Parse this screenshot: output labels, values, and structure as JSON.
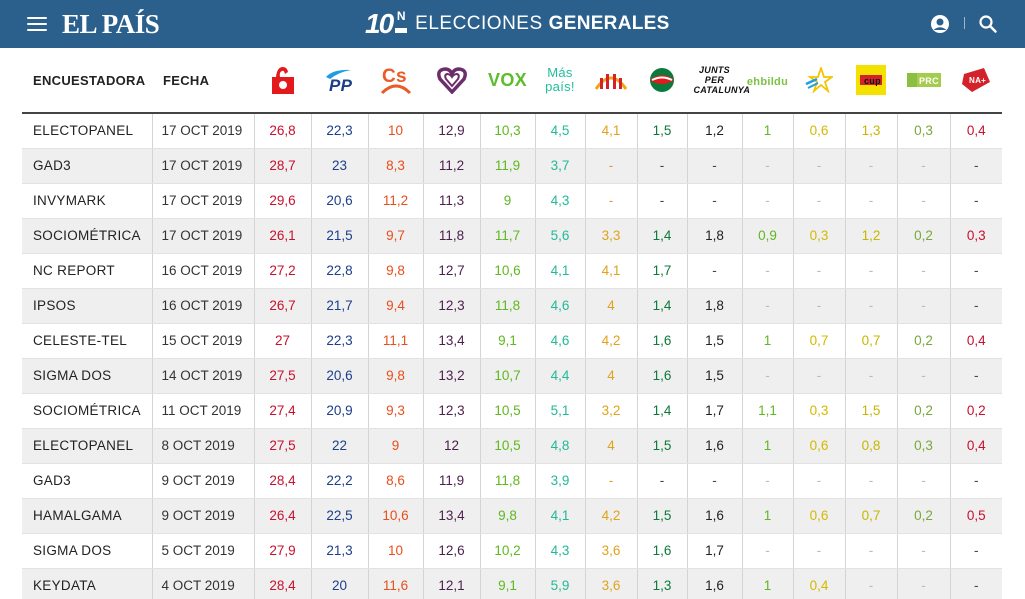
{
  "header": {
    "logo": "EL PAÍS",
    "badge_number": "10",
    "badge_letter": "N",
    "title_light": "ELECCIONES",
    "title_bold": "GENERALES"
  },
  "table": {
    "col_pollster": "ENCUESTADORA",
    "col_date": "FECHA",
    "parties": [
      {
        "id": "psoe",
        "label": "",
        "color": "#e3191b"
      },
      {
        "id": "pp",
        "label": "PP",
        "color": "#1c3e8b"
      },
      {
        "id": "cs",
        "label": "Cs",
        "color": "#ea5b25"
      },
      {
        "id": "up",
        "label": "",
        "color": "#6b2e6b"
      },
      {
        "id": "vox",
        "label": "VOX",
        "color": "#5bbd2b"
      },
      {
        "id": "mas",
        "label": "Más país!",
        "color": "#1fbf9b"
      },
      {
        "id": "erc",
        "label": "",
        "color": "#f3a412"
      },
      {
        "id": "pnv",
        "label": "",
        "color": "#0b7a3d"
      },
      {
        "id": "jxcat",
        "label": "JUNTS PER CATALUNYA",
        "color": "#111111"
      },
      {
        "id": "bildu",
        "label": "ehbildu",
        "color": "#7cc243"
      },
      {
        "id": "cc",
        "label": "",
        "color": "#f4c400"
      },
      {
        "id": "cup",
        "label": "cup",
        "color": "#f4e100"
      },
      {
        "id": "prc",
        "label": "PRC",
        "color": "#8cbf3f"
      },
      {
        "id": "na",
        "label": "NA+",
        "color": "#d3222a"
      }
    ],
    "value_colors": [
      "#c8102e",
      "#1c3e8b",
      "#e84e1b",
      "#4b1f4b",
      "#5fb81f",
      "#22b99a",
      "#e0a21c",
      "#0c7a3a",
      "#222222",
      "#5fb81f",
      "#d4b800",
      "#c6b700",
      "#7aa83a",
      "#c8102e"
    ],
    "rows": [
      {
        "pollster": "ELECTOPANEL",
        "date": "17 OCT 2019",
        "values": [
          "26,8",
          "22,3",
          "10",
          "12,9",
          "10,3",
          "4,5",
          "4,1",
          "1,5",
          "1,2",
          "1",
          "0,6",
          "1,3",
          "0,3",
          "0,4"
        ]
      },
      {
        "pollster": "GAD3",
        "date": "17 OCT 2019",
        "values": [
          "28,7",
          "23",
          "8,3",
          "11,2",
          "11,9",
          "3,7",
          "-",
          "-",
          "-",
          "-",
          "-",
          "-",
          "-",
          "-"
        ]
      },
      {
        "pollster": "INVYMARK",
        "date": "17 OCT 2019",
        "values": [
          "29,6",
          "20,6",
          "11,2",
          "11,3",
          "9",
          "4,3",
          "-",
          "-",
          "-",
          "-",
          "-",
          "-",
          "-",
          "-"
        ]
      },
      {
        "pollster": "SOCIOMÉTRICA",
        "date": "17 OCT 2019",
        "values": [
          "26,1",
          "21,5",
          "9,7",
          "11,8",
          "11,7",
          "5,6",
          "3,3",
          "1,4",
          "1,8",
          "0,9",
          "0,3",
          "1,2",
          "0,2",
          "0,3"
        ]
      },
      {
        "pollster": "NC REPORT",
        "date": "16 OCT 2019",
        "values": [
          "27,2",
          "22,8",
          "9,8",
          "12,7",
          "10,6",
          "4,1",
          "4,1",
          "1,7",
          "-",
          "-",
          "-",
          "-",
          "-",
          "-"
        ]
      },
      {
        "pollster": "IPSOS",
        "date": "16 OCT 2019",
        "values": [
          "26,7",
          "21,7",
          "9,4",
          "12,3",
          "11,8",
          "4,6",
          "4",
          "1,4",
          "1,8",
          "-",
          "-",
          "-",
          "-",
          "-"
        ]
      },
      {
        "pollster": "CELESTE-TEL",
        "date": "15 OCT 2019",
        "values": [
          "27",
          "22,3",
          "11,1",
          "13,4",
          "9,1",
          "4,6",
          "4,2",
          "1,6",
          "1,5",
          "1",
          "0,7",
          "0,7",
          "0,2",
          "0,4"
        ]
      },
      {
        "pollster": "SIGMA DOS",
        "date": "14 OCT 2019",
        "values": [
          "27,5",
          "20,6",
          "9,8",
          "13,2",
          "10,7",
          "4,4",
          "4",
          "1,6",
          "1,5",
          "-",
          "-",
          "-",
          "-",
          "-"
        ]
      },
      {
        "pollster": "SOCIOMÉTRICA",
        "date": "11 OCT 2019",
        "values": [
          "27,4",
          "20,9",
          "9,3",
          "12,3",
          "10,5",
          "5,1",
          "3,2",
          "1,4",
          "1,7",
          "1,1",
          "0,3",
          "1,5",
          "0,2",
          "0,2"
        ]
      },
      {
        "pollster": "ELECTOPANEL",
        "date": "8 OCT 2019",
        "values": [
          "27,5",
          "22",
          "9",
          "12",
          "10,5",
          "4,8",
          "4",
          "1,5",
          "1,6",
          "1",
          "0,6",
          "0,8",
          "0,3",
          "0,4"
        ]
      },
      {
        "pollster": "GAD3",
        "date": "9 OCT 2019",
        "values": [
          "28,4",
          "22,2",
          "8,6",
          "11,9",
          "11,8",
          "3,9",
          "-",
          "-",
          "-",
          "-",
          "-",
          "-",
          "-",
          "-"
        ]
      },
      {
        "pollster": "HAMALGAMA",
        "date": "9 OCT 2019",
        "values": [
          "26,4",
          "22,5",
          "10,6",
          "13,4",
          "9,8",
          "4,1",
          "4,2",
          "1,5",
          "1,6",
          "1",
          "0,6",
          "0,7",
          "0,2",
          "0,5"
        ]
      },
      {
        "pollster": "SIGMA DOS",
        "date": "5 OCT 2019",
        "values": [
          "27,9",
          "21,3",
          "10",
          "12,6",
          "10,2",
          "4,3",
          "3,6",
          "1,6",
          "1,7",
          "-",
          "-",
          "-",
          "-",
          "-"
        ]
      },
      {
        "pollster": "KEYDATA",
        "date": "4 OCT 2019",
        "values": [
          "28,4",
          "20",
          "11,6",
          "12,1",
          "9,1",
          "5,9",
          "3,6",
          "1,3",
          "1,6",
          "1",
          "0,4",
          "-",
          "-",
          "-"
        ]
      }
    ]
  }
}
